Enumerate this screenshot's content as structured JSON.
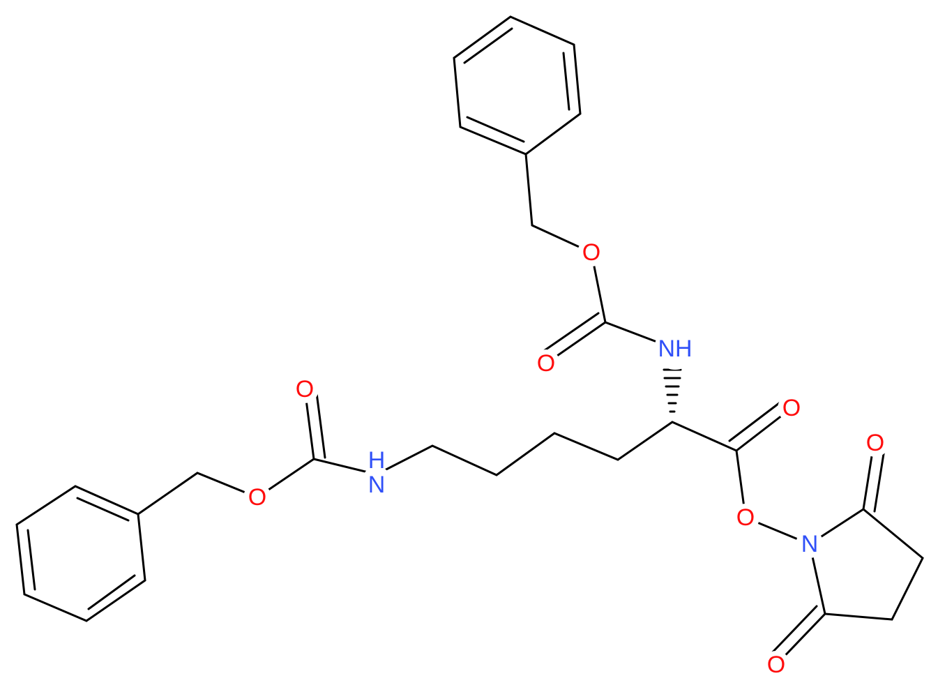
{
  "atoms": [
    {
      "label": "O"
    },
    {
      "label": "NH"
    },
    {
      "label": "O"
    },
    {
      "label": "O"
    },
    {
      "label": "O"
    },
    {
      "label": "O"
    },
    {
      "label": "N"
    },
    {
      "label": "O"
    },
    {
      "label": "O"
    },
    {
      "label": "N"
    },
    {
      "label": "H"
    },
    {
      "label": "O"
    }
  ]
}
